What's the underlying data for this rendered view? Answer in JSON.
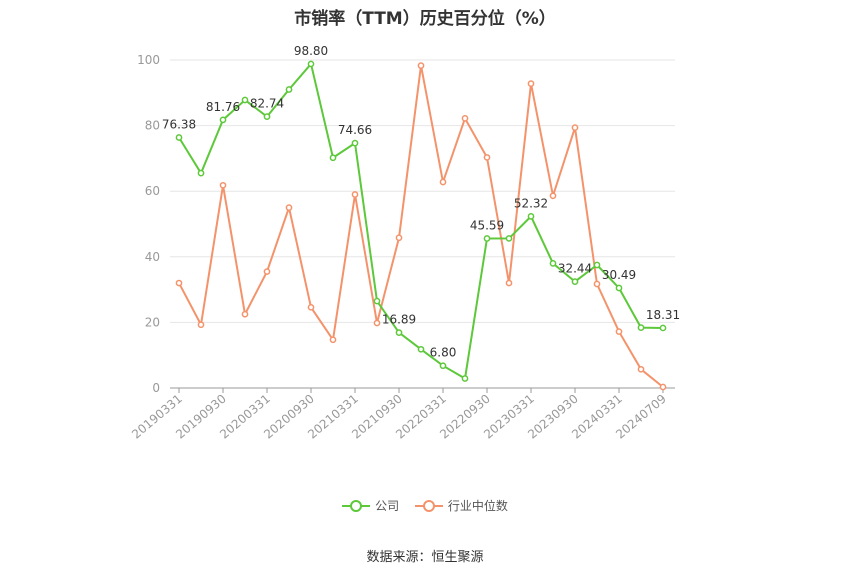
{
  "chart_data": {
    "type": "line",
    "title": "市销率（TTM）历史百分位（%）",
    "ylim": [
      0,
      100
    ],
    "yticks": [
      0,
      20,
      40,
      60,
      80,
      100
    ],
    "grid": true,
    "legend_position": "bottom",
    "x": [
      "20190331",
      "20190630",
      "20190930",
      "20191231",
      "20200331",
      "20200630",
      "20200930",
      "20201231",
      "20210331",
      "20210630",
      "20210930",
      "20211231",
      "20220331",
      "20220630",
      "20220930",
      "20221231",
      "20230331",
      "20230630",
      "20230930",
      "20231231",
      "20240331",
      "20240630",
      "20240709"
    ],
    "xtick_labels": [
      "20190331",
      "20190930",
      "20200331",
      "20200930",
      "20210331",
      "20210930",
      "20220331",
      "20220930",
      "20230331",
      "20230930",
      "20240331",
      "20240709"
    ],
    "series": [
      {
        "name": "公司",
        "color": "#5cc83a",
        "values": [
          76.38,
          65.5,
          81.76,
          87.8,
          82.74,
          91.0,
          98.8,
          70.2,
          74.66,
          26.5,
          16.89,
          11.8,
          6.8,
          2.9,
          45.59,
          45.6,
          52.32,
          38.0,
          32.44,
          37.5,
          30.49,
          18.4,
          18.31
        ],
        "labels": [
          "76.38",
          null,
          "81.76",
          null,
          "82.74",
          null,
          "98.80",
          null,
          "74.66",
          null,
          "16.89",
          null,
          "6.80",
          null,
          "45.59",
          null,
          "52.32",
          null,
          "32.44",
          null,
          "30.49",
          null,
          "18.31"
        ]
      },
      {
        "name": "行业中位数",
        "color": "#f4936b",
        "values": [
          32.0,
          19.3,
          61.8,
          22.5,
          35.5,
          55.0,
          24.6,
          14.7,
          59.0,
          19.8,
          45.8,
          98.3,
          62.8,
          82.2,
          70.3,
          32.0,
          92.8,
          58.6,
          79.4,
          31.7,
          17.2,
          5.7,
          0.3
        ]
      }
    ]
  },
  "source_text": "数据来源：恒生聚源"
}
